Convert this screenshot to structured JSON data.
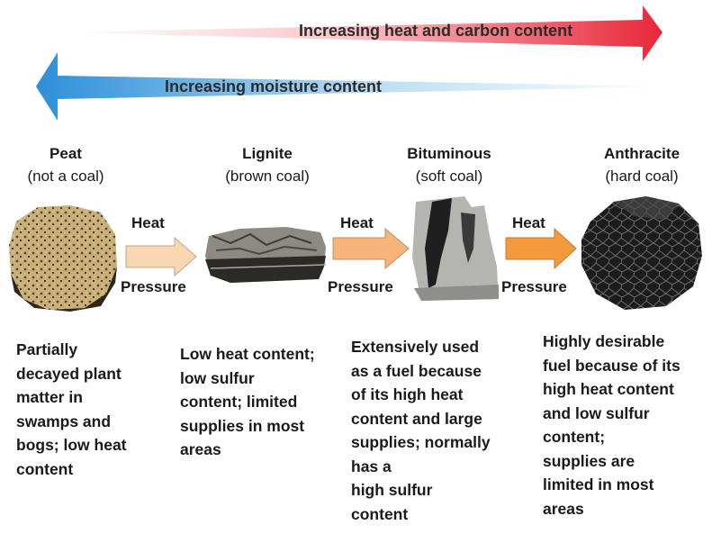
{
  "banners": {
    "heat_carbon": "Increasing heat and carbon content",
    "moisture": "Increasing moisture content"
  },
  "stages": [
    {
      "name": "Peat",
      "subtitle": "(not a coal)",
      "description": [
        "Partially",
        "decayed plant",
        "matter in",
        "swamps and",
        "bogs; low heat",
        "content"
      ]
    },
    {
      "name": "Lignite",
      "subtitle": "(brown coal)",
      "description": [
        "Low heat content;",
        "low sulfur",
        "content; limited",
        "supplies in most",
        "areas"
      ]
    },
    {
      "name": "Bituminous",
      "subtitle": "(soft coal)",
      "description": [
        "Extensively used",
        "as a fuel because",
        "of its high heat",
        "content and large",
        "supplies; normally",
        "has a",
        "high sulfur",
        "content"
      ]
    },
    {
      "name": "Anthracite",
      "subtitle": "(hard coal)",
      "description": [
        "Highly desirable",
        "fuel because of its",
        "high heat content",
        "and low sulfur",
        "content;",
        "supplies are",
        "limited in most",
        "areas"
      ]
    }
  ],
  "transitions": [
    {
      "top_label": "Heat",
      "bottom_label": "Pressure"
    },
    {
      "top_label": "Heat",
      "bottom_label": "Pressure"
    },
    {
      "top_label": "Heat",
      "bottom_label": "Pressure"
    }
  ],
  "colors": {
    "heat_arrow_end": "#e8283a",
    "moisture_arrow_end": "#2e8fd8",
    "process_arrow_1": "#f9d7b0",
    "process_arrow_2": "#f7b47a",
    "process_arrow_3": "#f39a3c",
    "peat": "#c9b07a",
    "anthracite": "#1c1c1c"
  }
}
